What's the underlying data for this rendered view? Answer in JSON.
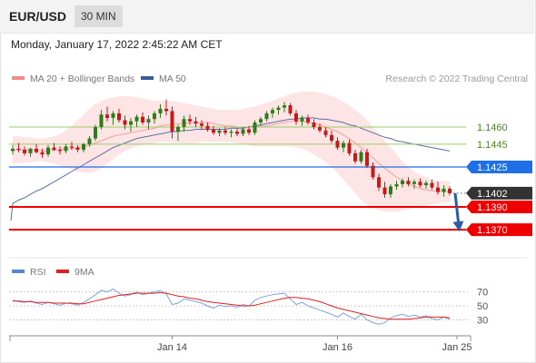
{
  "header": {
    "pair": "EUR/USD",
    "timeframe": "30 MIN"
  },
  "datetime": "Monday, January 17, 2022 2:45:22 AM CET",
  "legend": {
    "main": [
      {
        "label": "MA 20 + Bollinger Bands",
        "color": "#f48a8a"
      },
      {
        "label": "MA 50",
        "color": "#3b5a9a"
      }
    ],
    "rsi": [
      {
        "label": "RSI",
        "color": "#5b86d6"
      },
      {
        "label": "9MA",
        "color": "#e02020"
      }
    ]
  },
  "credit": "Research © 2022 Trading Central",
  "colors": {
    "up": "#2e7d1a",
    "down": "#c41a1a",
    "current": "#333333",
    "support": "#ef0000",
    "resistance_minor": "#9ccc65",
    "pivot": "#1e6fe8",
    "arrow": "#2b5ca8"
  },
  "chart_data": [
    {
      "type": "candlestick",
      "yrange": [
        1.1355,
        1.1495
      ],
      "levels": [
        {
          "value": 1.146,
          "label": "1.1460",
          "style": "light-green"
        },
        {
          "value": 1.1445,
          "label": "1.1445",
          "style": "light-green"
        },
        {
          "value": 1.1425,
          "label": "1.1425",
          "style": "blue"
        },
        {
          "value": 1.1402,
          "label": "1.1402",
          "style": "current"
        },
        {
          "value": 1.139,
          "label": "1.1390",
          "style": "red"
        },
        {
          "value": 1.137,
          "label": "1.1370",
          "style": "red"
        }
      ],
      "candles": [
        [
          1.1439,
          1.1444,
          1.1436,
          1.1441
        ],
        [
          1.1441,
          1.1446,
          1.1438,
          1.144
        ],
        [
          1.144,
          1.1443,
          1.1435,
          1.1437
        ],
        [
          1.1437,
          1.1442,
          1.1434,
          1.1441
        ],
        [
          1.1441,
          1.1445,
          1.1437,
          1.1438
        ],
        [
          1.1438,
          1.1441,
          1.1433,
          1.1436
        ],
        [
          1.1436,
          1.1444,
          1.1434,
          1.1442
        ],
        [
          1.1442,
          1.1446,
          1.1439,
          1.144
        ],
        [
          1.144,
          1.1443,
          1.1436,
          1.1439
        ],
        [
          1.1439,
          1.1445,
          1.1437,
          1.1443
        ],
        [
          1.1443,
          1.1447,
          1.144,
          1.1442
        ],
        [
          1.1442,
          1.1444,
          1.1438,
          1.144
        ],
        [
          1.144,
          1.1446,
          1.1438,
          1.1445
        ],
        [
          1.1445,
          1.1452,
          1.1443,
          1.145
        ],
        [
          1.145,
          1.1462,
          1.1448,
          1.146
        ],
        [
          1.146,
          1.1475,
          1.1458,
          1.1471
        ],
        [
          1.1471,
          1.1478,
          1.1465,
          1.1468
        ],
        [
          1.1468,
          1.1474,
          1.1462,
          1.1472
        ],
        [
          1.1472,
          1.1476,
          1.1464,
          1.1466
        ],
        [
          1.1466,
          1.147,
          1.1458,
          1.1462
        ],
        [
          1.1462,
          1.1468,
          1.1456,
          1.1465
        ],
        [
          1.1465,
          1.1471,
          1.146,
          1.1469
        ],
        [
          1.1469,
          1.1473,
          1.1462,
          1.1464
        ],
        [
          1.1464,
          1.147,
          1.1458,
          1.1467
        ],
        [
          1.1467,
          1.1474,
          1.1463,
          1.1472
        ],
        [
          1.1472,
          1.148,
          1.1468,
          1.1476
        ],
        [
          1.1476,
          1.1484,
          1.147,
          1.1474
        ],
        [
          1.1474,
          1.1478,
          1.145,
          1.1456
        ],
        [
          1.1456,
          1.1462,
          1.1448,
          1.146
        ],
        [
          1.146,
          1.147,
          1.1456,
          1.1467
        ],
        [
          1.1467,
          1.1471,
          1.1462,
          1.1465
        ],
        [
          1.1465,
          1.1469,
          1.146,
          1.1463
        ],
        [
          1.1463,
          1.1466,
          1.1458,
          1.1461
        ],
        [
          1.1461,
          1.1464,
          1.1456,
          1.1458
        ],
        [
          1.1458,
          1.1461,
          1.1453,
          1.1455
        ],
        [
          1.1455,
          1.1459,
          1.1452,
          1.1457
        ],
        [
          1.1457,
          1.146,
          1.1453,
          1.1455
        ],
        [
          1.1455,
          1.1458,
          1.1451,
          1.1456
        ],
        [
          1.1456,
          1.1459,
          1.1452,
          1.1454
        ],
        [
          1.1454,
          1.146,
          1.1452,
          1.1458
        ],
        [
          1.1458,
          1.1461,
          1.1453,
          1.1455
        ],
        [
          1.1455,
          1.1466,
          1.1453,
          1.1464
        ],
        [
          1.1464,
          1.1469,
          1.1461,
          1.1467
        ],
        [
          1.1467,
          1.1474,
          1.1465,
          1.1472
        ],
        [
          1.1472,
          1.1477,
          1.1468,
          1.1475
        ],
        [
          1.1475,
          1.1479,
          1.1471,
          1.1477
        ],
        [
          1.1477,
          1.1482,
          1.1473,
          1.1479
        ],
        [
          1.1479,
          1.1481,
          1.147,
          1.1472
        ],
        [
          1.1472,
          1.1475,
          1.1462,
          1.1465
        ],
        [
          1.1465,
          1.147,
          1.1461,
          1.1468
        ],
        [
          1.1468,
          1.1471,
          1.1462,
          1.1464
        ],
        [
          1.1464,
          1.1467,
          1.1458,
          1.146
        ],
        [
          1.146,
          1.1463,
          1.1455,
          1.1457
        ],
        [
          1.1457,
          1.146,
          1.1451,
          1.1453
        ],
        [
          1.1453,
          1.1457,
          1.1446,
          1.1448
        ],
        [
          1.1448,
          1.1451,
          1.144,
          1.1442
        ],
        [
          1.1442,
          1.1448,
          1.1438,
          1.1446
        ],
        [
          1.1446,
          1.1449,
          1.1435,
          1.1437
        ],
        [
          1.1437,
          1.144,
          1.1428,
          1.143
        ],
        [
          1.143,
          1.144,
          1.1428,
          1.1438
        ],
        [
          1.1438,
          1.1441,
          1.1424,
          1.1426
        ],
        [
          1.1426,
          1.1429,
          1.1414,
          1.1416
        ],
        [
          1.1416,
          1.1419,
          1.1404,
          1.1407
        ],
        [
          1.1407,
          1.1412,
          1.1398,
          1.1401
        ],
        [
          1.1401,
          1.141,
          1.1398,
          1.1408
        ],
        [
          1.1408,
          1.1413,
          1.1405,
          1.141
        ],
        [
          1.141,
          1.1415,
          1.1407,
          1.1413
        ],
        [
          1.1413,
          1.1416,
          1.1408,
          1.141
        ],
        [
          1.141,
          1.1414,
          1.1406,
          1.1412
        ],
        [
          1.1412,
          1.1415,
          1.1407,
          1.1409
        ],
        [
          1.1409,
          1.1413,
          1.1406,
          1.1411
        ],
        [
          1.1411,
          1.1414,
          1.1405,
          1.1407
        ],
        [
          1.1407,
          1.1412,
          1.1401,
          1.1403
        ],
        [
          1.1403,
          1.1409,
          1.1399,
          1.1406
        ],
        [
          1.1406,
          1.1408,
          1.14,
          1.1402
        ]
      ],
      "ma20": [
        1.144,
        1.144,
        1.144,
        1.144,
        1.144,
        1.1439,
        1.1439,
        1.144,
        1.144,
        1.1441,
        1.1441,
        1.1442,
        1.1443,
        1.1444,
        1.1446,
        1.1448,
        1.145,
        1.1452,
        1.1453,
        1.1454,
        1.1455,
        1.1456,
        1.1457,
        1.1458,
        1.1459,
        1.1461,
        1.1462,
        1.1462,
        1.1463,
        1.1463,
        1.1464,
        1.1464,
        1.1464,
        1.1464,
        1.1463,
        1.1462,
        1.1461,
        1.1461,
        1.146,
        1.146,
        1.146,
        1.146,
        1.1461,
        1.1461,
        1.1462,
        1.1463,
        1.1464,
        1.1465,
        1.1465,
        1.1465,
        1.1464,
        1.1463,
        1.1462,
        1.146,
        1.1458,
        1.1456,
        1.1453,
        1.145,
        1.1446,
        1.1442,
        1.1438,
        1.1433,
        1.1428,
        1.1424,
        1.142,
        1.1416,
        1.1413,
        1.141,
        1.1408,
        1.1406,
        1.1405,
        1.1404,
        1.1404,
        1.1404,
        1.1403
      ],
      "bb_upper": [
        1.1452,
        1.1452,
        1.1451,
        1.1451,
        1.145,
        1.145,
        1.1451,
        1.1452,
        1.1454,
        1.1457,
        1.1461,
        1.1466,
        1.1471,
        1.1476,
        1.148,
        1.1483,
        1.1485,
        1.1486,
        1.1487,
        1.1487,
        1.1487,
        1.1486,
        1.1485,
        1.1484,
        1.1483,
        1.1483,
        1.1483,
        1.1483,
        1.1482,
        1.1481,
        1.148,
        1.1479,
        1.1478,
        1.1477,
        1.1476,
        1.1475,
        1.1475,
        1.1475,
        1.1475,
        1.1476,
        1.1477,
        1.1478,
        1.148,
        1.1481,
        1.1483,
        1.1485,
        1.1487,
        1.1489,
        1.149,
        1.1491,
        1.1491,
        1.1491,
        1.149,
        1.1489,
        1.1487,
        1.1485,
        1.1482,
        1.1479,
        1.1475,
        1.1471,
        1.1466,
        1.146,
        1.1454,
        1.1448,
        1.1442,
        1.1436,
        1.143,
        1.1425,
        1.1421,
        1.1418,
        1.1416,
        1.1414,
        1.1413,
        1.1413,
        1.1412
      ],
      "bb_lower": [
        1.1428,
        1.1428,
        1.1429,
        1.1429,
        1.143,
        1.143,
        1.1429,
        1.1428,
        1.1426,
        1.1425,
        1.1423,
        1.1421,
        1.142,
        1.142,
        1.1421,
        1.1424,
        1.1428,
        1.1432,
        1.1436,
        1.1439,
        1.1441,
        1.1443,
        1.1444,
        1.1445,
        1.1446,
        1.1447,
        1.1447,
        1.1446,
        1.1446,
        1.1446,
        1.1446,
        1.1446,
        1.1447,
        1.1447,
        1.1447,
        1.1447,
        1.1447,
        1.1447,
        1.1446,
        1.1445,
        1.1444,
        1.1443,
        1.1443,
        1.1443,
        1.1443,
        1.1443,
        1.1443,
        1.1443,
        1.1442,
        1.1441,
        1.1439,
        1.1436,
        1.1433,
        1.1429,
        1.1425,
        1.142,
        1.1414,
        1.1408,
        1.1402,
        1.1396,
        1.1392,
        1.1389,
        1.1387,
        1.1386,
        1.1386,
        1.1386,
        1.1387,
        1.1388,
        1.1389,
        1.139,
        1.1391,
        1.1392,
        1.1393,
        1.1394,
        1.1394
      ],
      "ma50": [
        1.1393,
        1.1396,
        1.1398,
        1.1401,
        1.1404,
        1.1406,
        1.1409,
        1.1412,
        1.1415,
        1.1418,
        1.1421,
        1.1424,
        1.1427,
        1.143,
        1.1433,
        1.1436,
        1.1439,
        1.1442,
        1.1444,
        1.1446,
        1.1448,
        1.145,
        1.1451,
        1.1452,
        1.1453,
        1.1454,
        1.1455,
        1.1456,
        1.1456,
        1.1457,
        1.1457,
        1.1458,
        1.1458,
        1.1458,
        1.1458,
        1.1458,
        1.1458,
        1.1459,
        1.1459,
        1.1459,
        1.146,
        1.1461,
        1.1462,
        1.1463,
        1.1464,
        1.1465,
        1.1466,
        1.1467,
        1.1467,
        1.1468,
        1.1468,
        1.1468,
        1.1467,
        1.1467,
        1.1466,
        1.1465,
        1.1464,
        1.1462,
        1.1461,
        1.1459,
        1.1457,
        1.1455,
        1.1453,
        1.1451,
        1.145,
        1.1448,
        1.1447,
        1.1446,
        1.1445,
        1.1444,
        1.1443,
        1.1442,
        1.1441,
        1.144,
        1.1439
      ],
      "projection": {
        "from": 1.1402,
        "to": 1.137
      }
    },
    {
      "type": "line",
      "name": "RSI",
      "ylevels": [
        70,
        50,
        30
      ],
      "ylim": [
        10,
        85
      ],
      "rsi": [
        58,
        56,
        55,
        57,
        54,
        52,
        55,
        53,
        51,
        54,
        53,
        51,
        55,
        60,
        66,
        72,
        70,
        74,
        68,
        64,
        66,
        70,
        66,
        68,
        70,
        72,
        67,
        52,
        54,
        60,
        58,
        56,
        54,
        50,
        47,
        51,
        49,
        50,
        48,
        52,
        50,
        58,
        62,
        64,
        66,
        67,
        68,
        60,
        52,
        55,
        50,
        47,
        44,
        41,
        38,
        34,
        40,
        35,
        31,
        38,
        30,
        26,
        24,
        26,
        33,
        36,
        38,
        35,
        37,
        34,
        36,
        32,
        30,
        34,
        31
      ],
      "ma9": [
        57,
        57,
        56,
        56,
        55,
        55,
        55,
        54,
        54,
        54,
        54,
        53,
        53,
        55,
        57,
        59,
        61,
        63,
        65,
        66,
        67,
        68,
        68,
        68,
        68,
        69,
        68,
        66,
        64,
        63,
        61,
        60,
        58,
        56,
        55,
        54,
        53,
        52,
        51,
        50,
        50,
        51,
        53,
        55,
        57,
        59,
        61,
        62,
        62,
        61,
        60,
        58,
        56,
        53,
        50,
        47,
        45,
        43,
        41,
        39,
        37,
        35,
        33,
        32,
        31,
        31,
        31,
        31,
        32,
        33,
        34,
        34,
        34,
        34,
        33
      ]
    }
  ],
  "xaxis": {
    "labels": [
      {
        "text": "Jan 14",
        "index": 27
      },
      {
        "text": "Jan 16",
        "index": 55
      },
      {
        "text": "Jan 25",
        "index": 65
      }
    ]
  }
}
